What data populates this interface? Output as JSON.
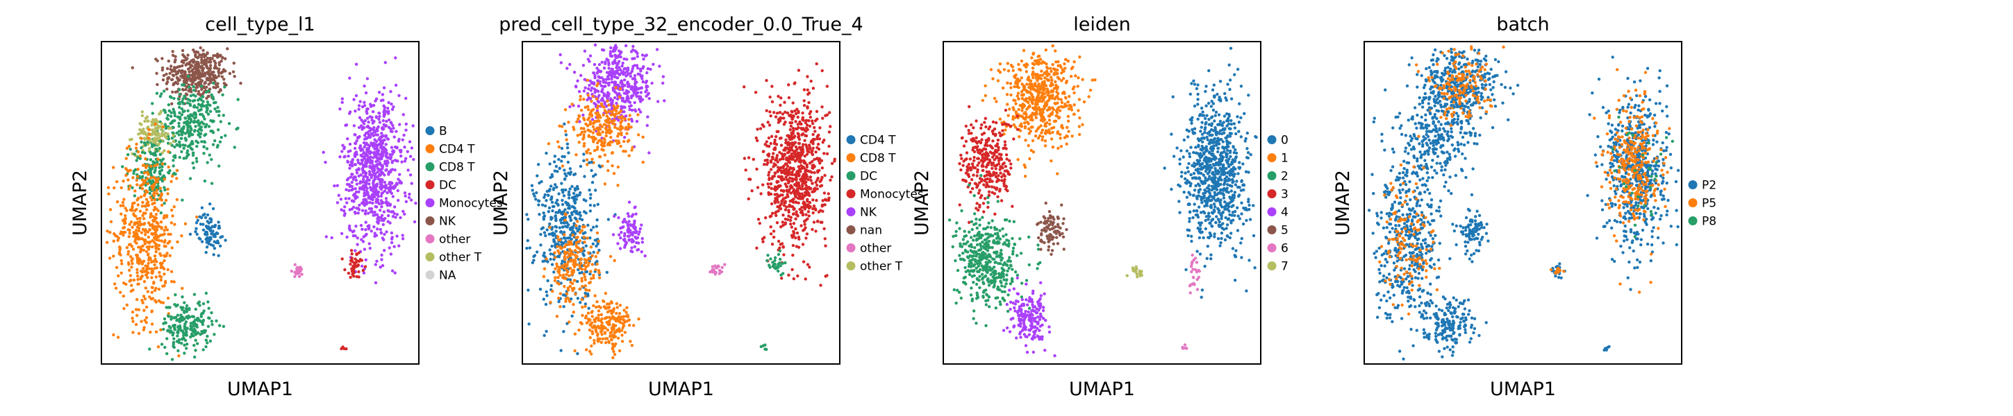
{
  "chart_data": [
    {
      "type": "scatter",
      "title": "cell_type_l1",
      "xlabel": "UMAP1",
      "ylabel": "UMAP2",
      "grid": false,
      "ticks": false,
      "legend_position": "right",
      "categories": [
        {
          "name": "B",
          "color": "#1f77b4"
        },
        {
          "name": "CD4 T",
          "color": "#ff7f0e"
        },
        {
          "name": "CD8 T",
          "color": "#279e68"
        },
        {
          "name": "DC",
          "color": "#d62728"
        },
        {
          "name": "Monocytes",
          "color": "#aa40fc"
        },
        {
          "name": "NK",
          "color": "#8c564b"
        },
        {
          "name": "other",
          "color": "#e377c2"
        },
        {
          "name": "other T",
          "color": "#b5bd61"
        },
        {
          "name": "NA",
          "color": "#d3d3d3"
        }
      ],
      "clusters": [
        {
          "name": "NK",
          "x": 0.3,
          "y": 0.9,
          "sx": 0.05,
          "sy": 0.04,
          "n": 380
        },
        {
          "name": "CD8 T",
          "x": 0.28,
          "y": 0.74,
          "sx": 0.05,
          "sy": 0.06,
          "n": 320
        },
        {
          "name": "other T",
          "x": 0.16,
          "y": 0.71,
          "sx": 0.03,
          "sy": 0.03,
          "n": 120
        },
        {
          "name": "CD8 T",
          "x": 0.16,
          "y": 0.6,
          "sx": 0.03,
          "sy": 0.05,
          "n": 160
        },
        {
          "name": "CD4 T",
          "x": 0.14,
          "y": 0.4,
          "sx": 0.05,
          "sy": 0.13,
          "n": 520
        },
        {
          "name": "CD8 T",
          "x": 0.27,
          "y": 0.12,
          "sx": 0.04,
          "sy": 0.04,
          "n": 200
        },
        {
          "name": "B",
          "x": 0.34,
          "y": 0.41,
          "sx": 0.02,
          "sy": 0.03,
          "n": 90
        },
        {
          "name": "Monocytes",
          "x": 0.86,
          "y": 0.6,
          "sx": 0.05,
          "sy": 0.12,
          "n": 800
        },
        {
          "name": "DC",
          "x": 0.8,
          "y": 0.31,
          "sx": 0.015,
          "sy": 0.02,
          "n": 40
        },
        {
          "name": "other",
          "x": 0.62,
          "y": 0.29,
          "sx": 0.01,
          "sy": 0.01,
          "n": 25
        },
        {
          "name": "DC",
          "x": 0.76,
          "y": 0.05,
          "sx": 0.005,
          "sy": 0.005,
          "n": 5
        }
      ]
    },
    {
      "type": "scatter",
      "title": "pred_cell_type_32_encoder_0.0_True_4",
      "xlabel": "UMAP1",
      "ylabel": "UMAP2",
      "grid": false,
      "ticks": false,
      "legend_position": "right",
      "categories": [
        {
          "name": "CD4 T",
          "color": "#1f77b4"
        },
        {
          "name": "CD8 T",
          "color": "#ff7f0e"
        },
        {
          "name": "DC",
          "color": "#279e68"
        },
        {
          "name": "Monocytes",
          "color": "#d62728"
        },
        {
          "name": "NK",
          "color": "#aa40fc"
        },
        {
          "name": "nan",
          "color": "#8c564b"
        },
        {
          "name": "other",
          "color": "#e377c2"
        },
        {
          "name": "other T",
          "color": "#b5bd61"
        }
      ],
      "clusters": [
        {
          "name": "NK",
          "x": 0.3,
          "y": 0.86,
          "sx": 0.06,
          "sy": 0.06,
          "n": 450
        },
        {
          "name": "CD8 T",
          "x": 0.25,
          "y": 0.73,
          "sx": 0.05,
          "sy": 0.05,
          "n": 250
        },
        {
          "name": "CD4 T",
          "x": 0.14,
          "y": 0.42,
          "sx": 0.05,
          "sy": 0.12,
          "n": 450
        },
        {
          "name": "CD8 T",
          "x": 0.16,
          "y": 0.3,
          "sx": 0.04,
          "sy": 0.06,
          "n": 200
        },
        {
          "name": "CD8 T",
          "x": 0.27,
          "y": 0.12,
          "sx": 0.04,
          "sy": 0.04,
          "n": 200
        },
        {
          "name": "NK",
          "x": 0.34,
          "y": 0.41,
          "sx": 0.02,
          "sy": 0.03,
          "n": 90
        },
        {
          "name": "Monocytes",
          "x": 0.86,
          "y": 0.6,
          "sx": 0.05,
          "sy": 0.12,
          "n": 800
        },
        {
          "name": "DC",
          "x": 0.8,
          "y": 0.31,
          "sx": 0.012,
          "sy": 0.02,
          "n": 30
        },
        {
          "name": "other",
          "x": 0.61,
          "y": 0.29,
          "sx": 0.01,
          "sy": 0.01,
          "n": 20
        },
        {
          "name": "DC",
          "x": 0.76,
          "y": 0.05,
          "sx": 0.005,
          "sy": 0.005,
          "n": 5
        }
      ]
    },
    {
      "type": "scatter",
      "title": "leiden",
      "xlabel": "UMAP1",
      "ylabel": "UMAP2",
      "grid": false,
      "ticks": false,
      "legend_position": "right",
      "categories": [
        {
          "name": "0",
          "color": "#1f77b4"
        },
        {
          "name": "1",
          "color": "#ff7f0e"
        },
        {
          "name": "2",
          "color": "#279e68"
        },
        {
          "name": "3",
          "color": "#d62728"
        },
        {
          "name": "4",
          "color": "#aa40fc"
        },
        {
          "name": "5",
          "color": "#8c564b"
        },
        {
          "name": "6",
          "color": "#e377c2"
        },
        {
          "name": "7",
          "color": "#b5bd61"
        }
      ],
      "clusters": [
        {
          "name": "1",
          "x": 0.3,
          "y": 0.83,
          "sx": 0.06,
          "sy": 0.07,
          "n": 550
        },
        {
          "name": "3",
          "x": 0.14,
          "y": 0.62,
          "sx": 0.04,
          "sy": 0.07,
          "n": 300
        },
        {
          "name": "2",
          "x": 0.14,
          "y": 0.32,
          "sx": 0.05,
          "sy": 0.07,
          "n": 420
        },
        {
          "name": "4",
          "x": 0.27,
          "y": 0.14,
          "sx": 0.03,
          "sy": 0.04,
          "n": 180
        },
        {
          "name": "5",
          "x": 0.34,
          "y": 0.41,
          "sx": 0.02,
          "sy": 0.03,
          "n": 90
        },
        {
          "name": "0",
          "x": 0.86,
          "y": 0.6,
          "sx": 0.05,
          "sy": 0.12,
          "n": 800
        },
        {
          "name": "6",
          "x": 0.79,
          "y": 0.28,
          "sx": 0.01,
          "sy": 0.03,
          "n": 25
        },
        {
          "name": "7",
          "x": 0.61,
          "y": 0.29,
          "sx": 0.01,
          "sy": 0.01,
          "n": 20
        },
        {
          "name": "6",
          "x": 0.76,
          "y": 0.05,
          "sx": 0.005,
          "sy": 0.005,
          "n": 5
        }
      ]
    },
    {
      "type": "scatter",
      "title": "batch",
      "xlabel": "UMAP1",
      "ylabel": "UMAP2",
      "grid": false,
      "ticks": false,
      "legend_position": "right",
      "categories": [
        {
          "name": "P2",
          "color": "#1f77b4"
        },
        {
          "name": "P5",
          "color": "#ff7f0e"
        },
        {
          "name": "P8",
          "color": "#279e68"
        }
      ],
      "clusters": [
        {
          "name": "P2",
          "x": 0.3,
          "y": 0.86,
          "sx": 0.06,
          "sy": 0.06,
          "n": 400
        },
        {
          "name": "P5",
          "x": 0.3,
          "y": 0.86,
          "sx": 0.05,
          "sy": 0.05,
          "n": 150
        },
        {
          "name": "P2",
          "x": 0.22,
          "y": 0.68,
          "sx": 0.06,
          "sy": 0.07,
          "n": 250
        },
        {
          "name": "P2",
          "x": 0.14,
          "y": 0.38,
          "sx": 0.05,
          "sy": 0.12,
          "n": 450
        },
        {
          "name": "P5",
          "x": 0.14,
          "y": 0.38,
          "sx": 0.04,
          "sy": 0.1,
          "n": 120
        },
        {
          "name": "P2",
          "x": 0.27,
          "y": 0.12,
          "sx": 0.04,
          "sy": 0.04,
          "n": 180
        },
        {
          "name": "P2",
          "x": 0.34,
          "y": 0.41,
          "sx": 0.02,
          "sy": 0.03,
          "n": 90
        },
        {
          "name": "P2",
          "x": 0.86,
          "y": 0.6,
          "sx": 0.05,
          "sy": 0.12,
          "n": 550
        },
        {
          "name": "P5",
          "x": 0.85,
          "y": 0.62,
          "sx": 0.04,
          "sy": 0.1,
          "n": 300
        },
        {
          "name": "P8",
          "x": 0.87,
          "y": 0.62,
          "sx": 0.04,
          "sy": 0.1,
          "n": 30
        },
        {
          "name": "P2",
          "x": 0.61,
          "y": 0.29,
          "sx": 0.01,
          "sy": 0.01,
          "n": 20
        },
        {
          "name": "P5",
          "x": 0.61,
          "y": 0.29,
          "sx": 0.008,
          "sy": 0.008,
          "n": 10
        },
        {
          "name": "P2",
          "x": 0.76,
          "y": 0.05,
          "sx": 0.005,
          "sy": 0.005,
          "n": 5
        }
      ]
    }
  ]
}
